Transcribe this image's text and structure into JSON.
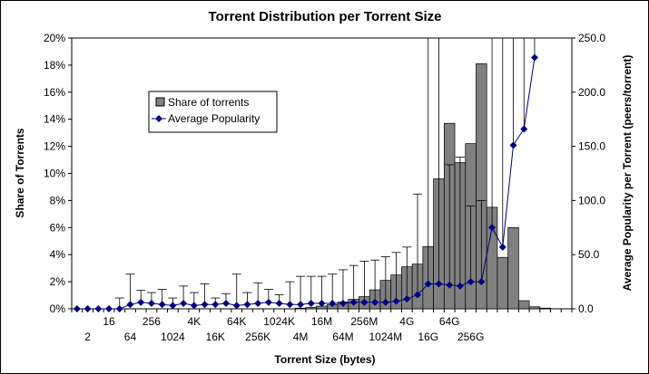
{
  "chart_data": {
    "type": "bar",
    "title": "Torrent Distribution per Torrent Size",
    "xlabel": "Torrent Size (bytes)",
    "ylabel": "Share of Torrents",
    "y2label": "Average Popularity per Torrent (peers/torrent)",
    "ylim": [
      0,
      20
    ],
    "y2lim": [
      0,
      250
    ],
    "yticks": [
      "0%",
      "2%",
      "4%",
      "6%",
      "8%",
      "10%",
      "12%",
      "14%",
      "16%",
      "18%",
      "20%"
    ],
    "y2ticks": [
      "0.0",
      "50.0",
      "100.0",
      "150.0",
      "200.0",
      "250.0"
    ],
    "xtick_labels": [
      "2",
      "16",
      "64",
      "256",
      "1024",
      "4K",
      "16K",
      "64K",
      "256K",
      "1024K",
      "4M",
      "16M",
      "64M",
      "256M",
      "1024M",
      "4G",
      "16G",
      "64G",
      "256G"
    ],
    "grid": false,
    "legend_position": "upper-left",
    "colors": {
      "bar": "#808080",
      "line": "#000080",
      "plot_bg": "#ffffff"
    },
    "series": [
      {
        "name": "Share of torrents",
        "type": "bar",
        "values": [
          0,
          0,
          0,
          0,
          0,
          0,
          0,
          0,
          0,
          0,
          0,
          0,
          0,
          0,
          0,
          0,
          0,
          0,
          0,
          0,
          0,
          0.05,
          0.1,
          0.2,
          0.3,
          0.5,
          0.7,
          0.9,
          1.4,
          2.1,
          2.5,
          3.1,
          3.3,
          4.6,
          9.6,
          13.7,
          10.8,
          12.2,
          18.1,
          7.5,
          3.8,
          6.0,
          0.6,
          0.15,
          0.05,
          0,
          0
        ]
      },
      {
        "name": "Average Popularity",
        "type": "line",
        "values": [
          0,
          0,
          0,
          0,
          0,
          4,
          6,
          5,
          4,
          3,
          5,
          3,
          4,
          4,
          5,
          3,
          4,
          5,
          6,
          5,
          4,
          4,
          5,
          5,
          5,
          5,
          6,
          6,
          6,
          6,
          7,
          9,
          13,
          23,
          23,
          22,
          21,
          25,
          25,
          75,
          57,
          151,
          166,
          232
        ],
        "error_upper": [
          0,
          0,
          0,
          0,
          10,
          32,
          17,
          15,
          18,
          10,
          21,
          15,
          23,
          10,
          14,
          32,
          15,
          24,
          18,
          13,
          25,
          30,
          30,
          30,
          32,
          36,
          40,
          44,
          45,
          48,
          52,
          57,
          106,
          250,
          250,
          133,
          140,
          95,
          100,
          250,
          250,
          250,
          250,
          250
        ]
      }
    ]
  }
}
